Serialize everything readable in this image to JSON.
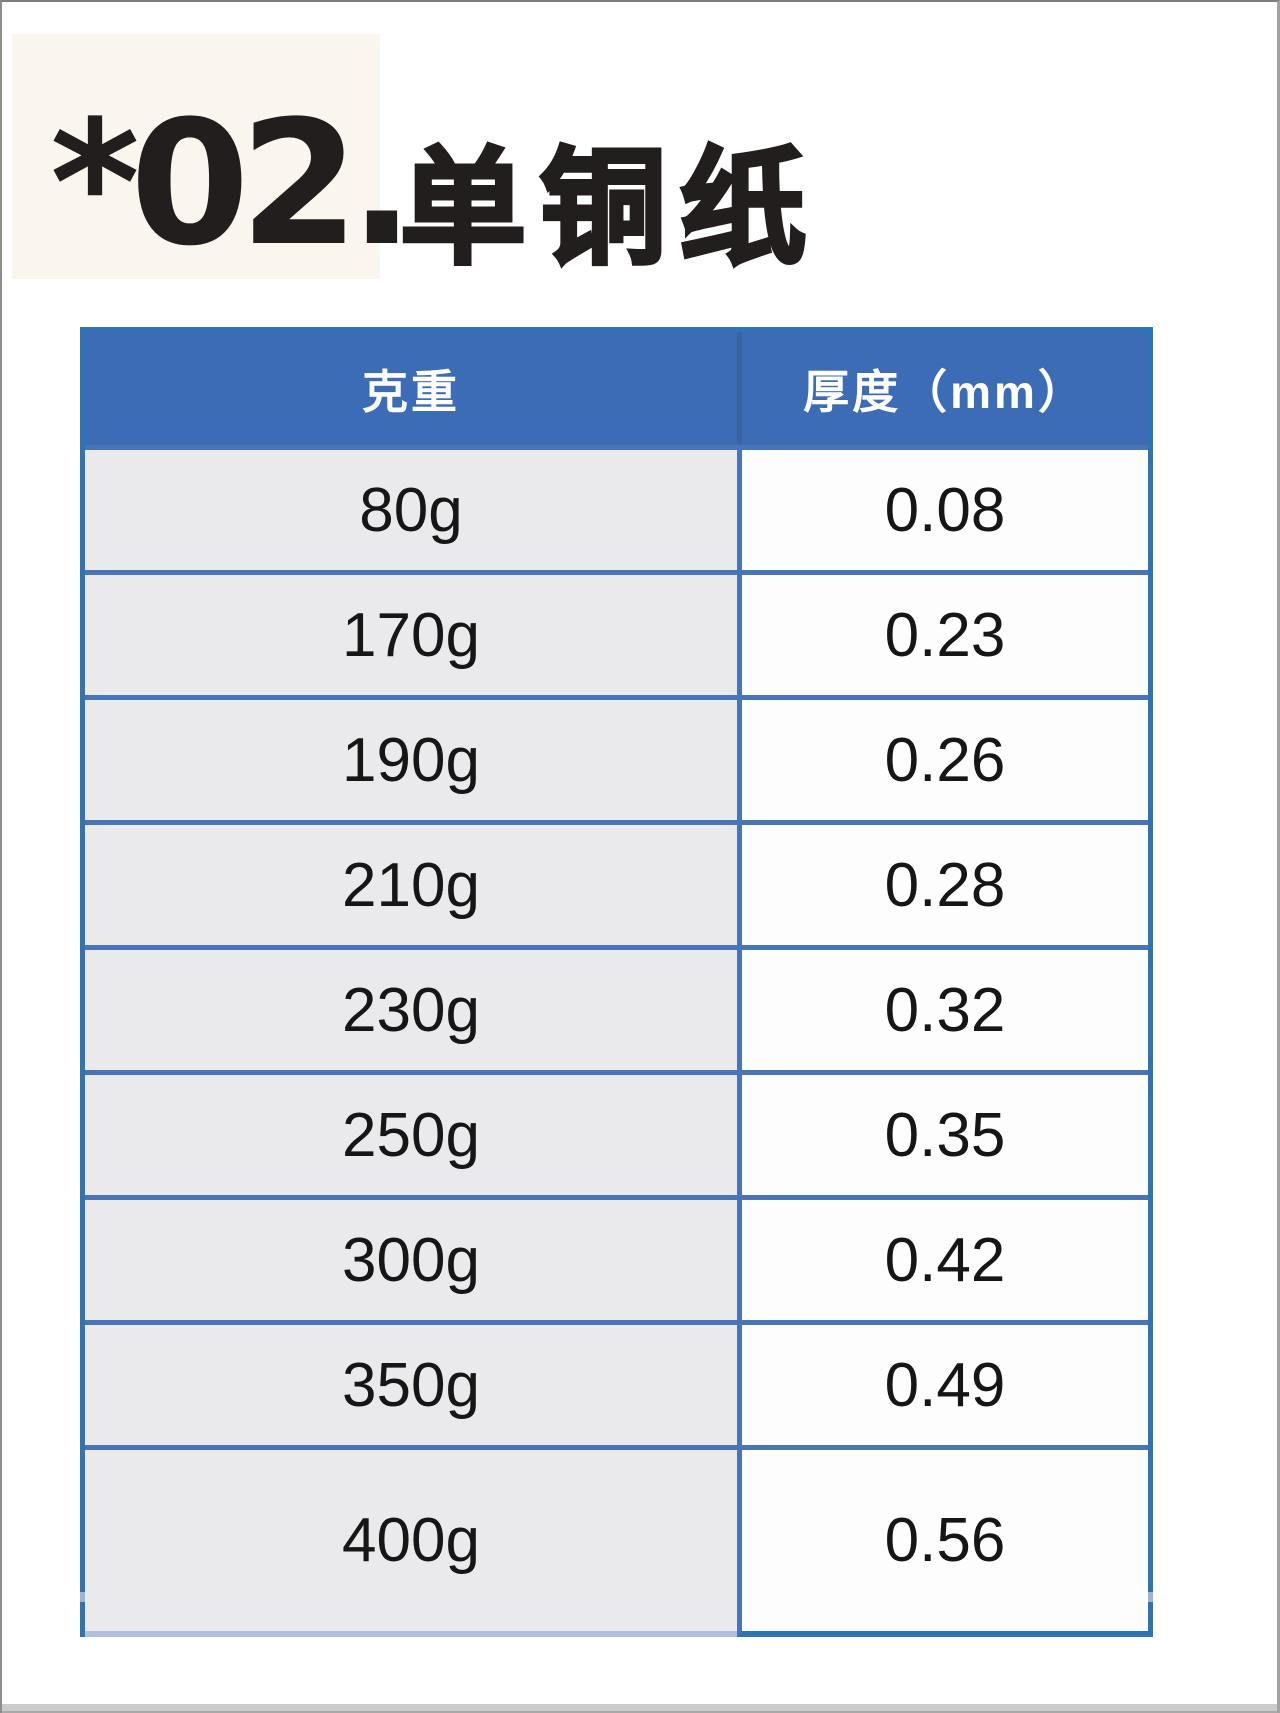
{
  "title": {
    "index": "*02.",
    "text": "单铜纸"
  },
  "table": {
    "col_headers": [
      "克重",
      "厚度（mm）"
    ],
    "rows": [
      {
        "weight": "80g",
        "thickness": "0.08"
      },
      {
        "weight": "170g",
        "thickness": "0.23"
      },
      {
        "weight": "190g",
        "thickness": "0.26"
      },
      {
        "weight": "210g",
        "thickness": "0.28"
      },
      {
        "weight": "230g",
        "thickness": "0.32"
      },
      {
        "weight": "250g",
        "thickness": "0.35"
      },
      {
        "weight": "300g",
        "thickness": "0.42"
      },
      {
        "weight": "350g",
        "thickness": "0.49"
      },
      {
        "weight": "400g",
        "thickness": "0.56"
      }
    ]
  },
  "colors": {
    "table_header_bg": "#3D6CB6",
    "table_inner_border": "#4A74B8",
    "table_outer_border": "#2E74B5",
    "weight_column_bg": "#EAEAEC",
    "thickness_column_bg": "#FDFDFE",
    "header_text": "#FFFFFF",
    "body_text": "#161616",
    "title_text": "#221E1E",
    "title_highlight_bg": "#FAF6EE"
  }
}
